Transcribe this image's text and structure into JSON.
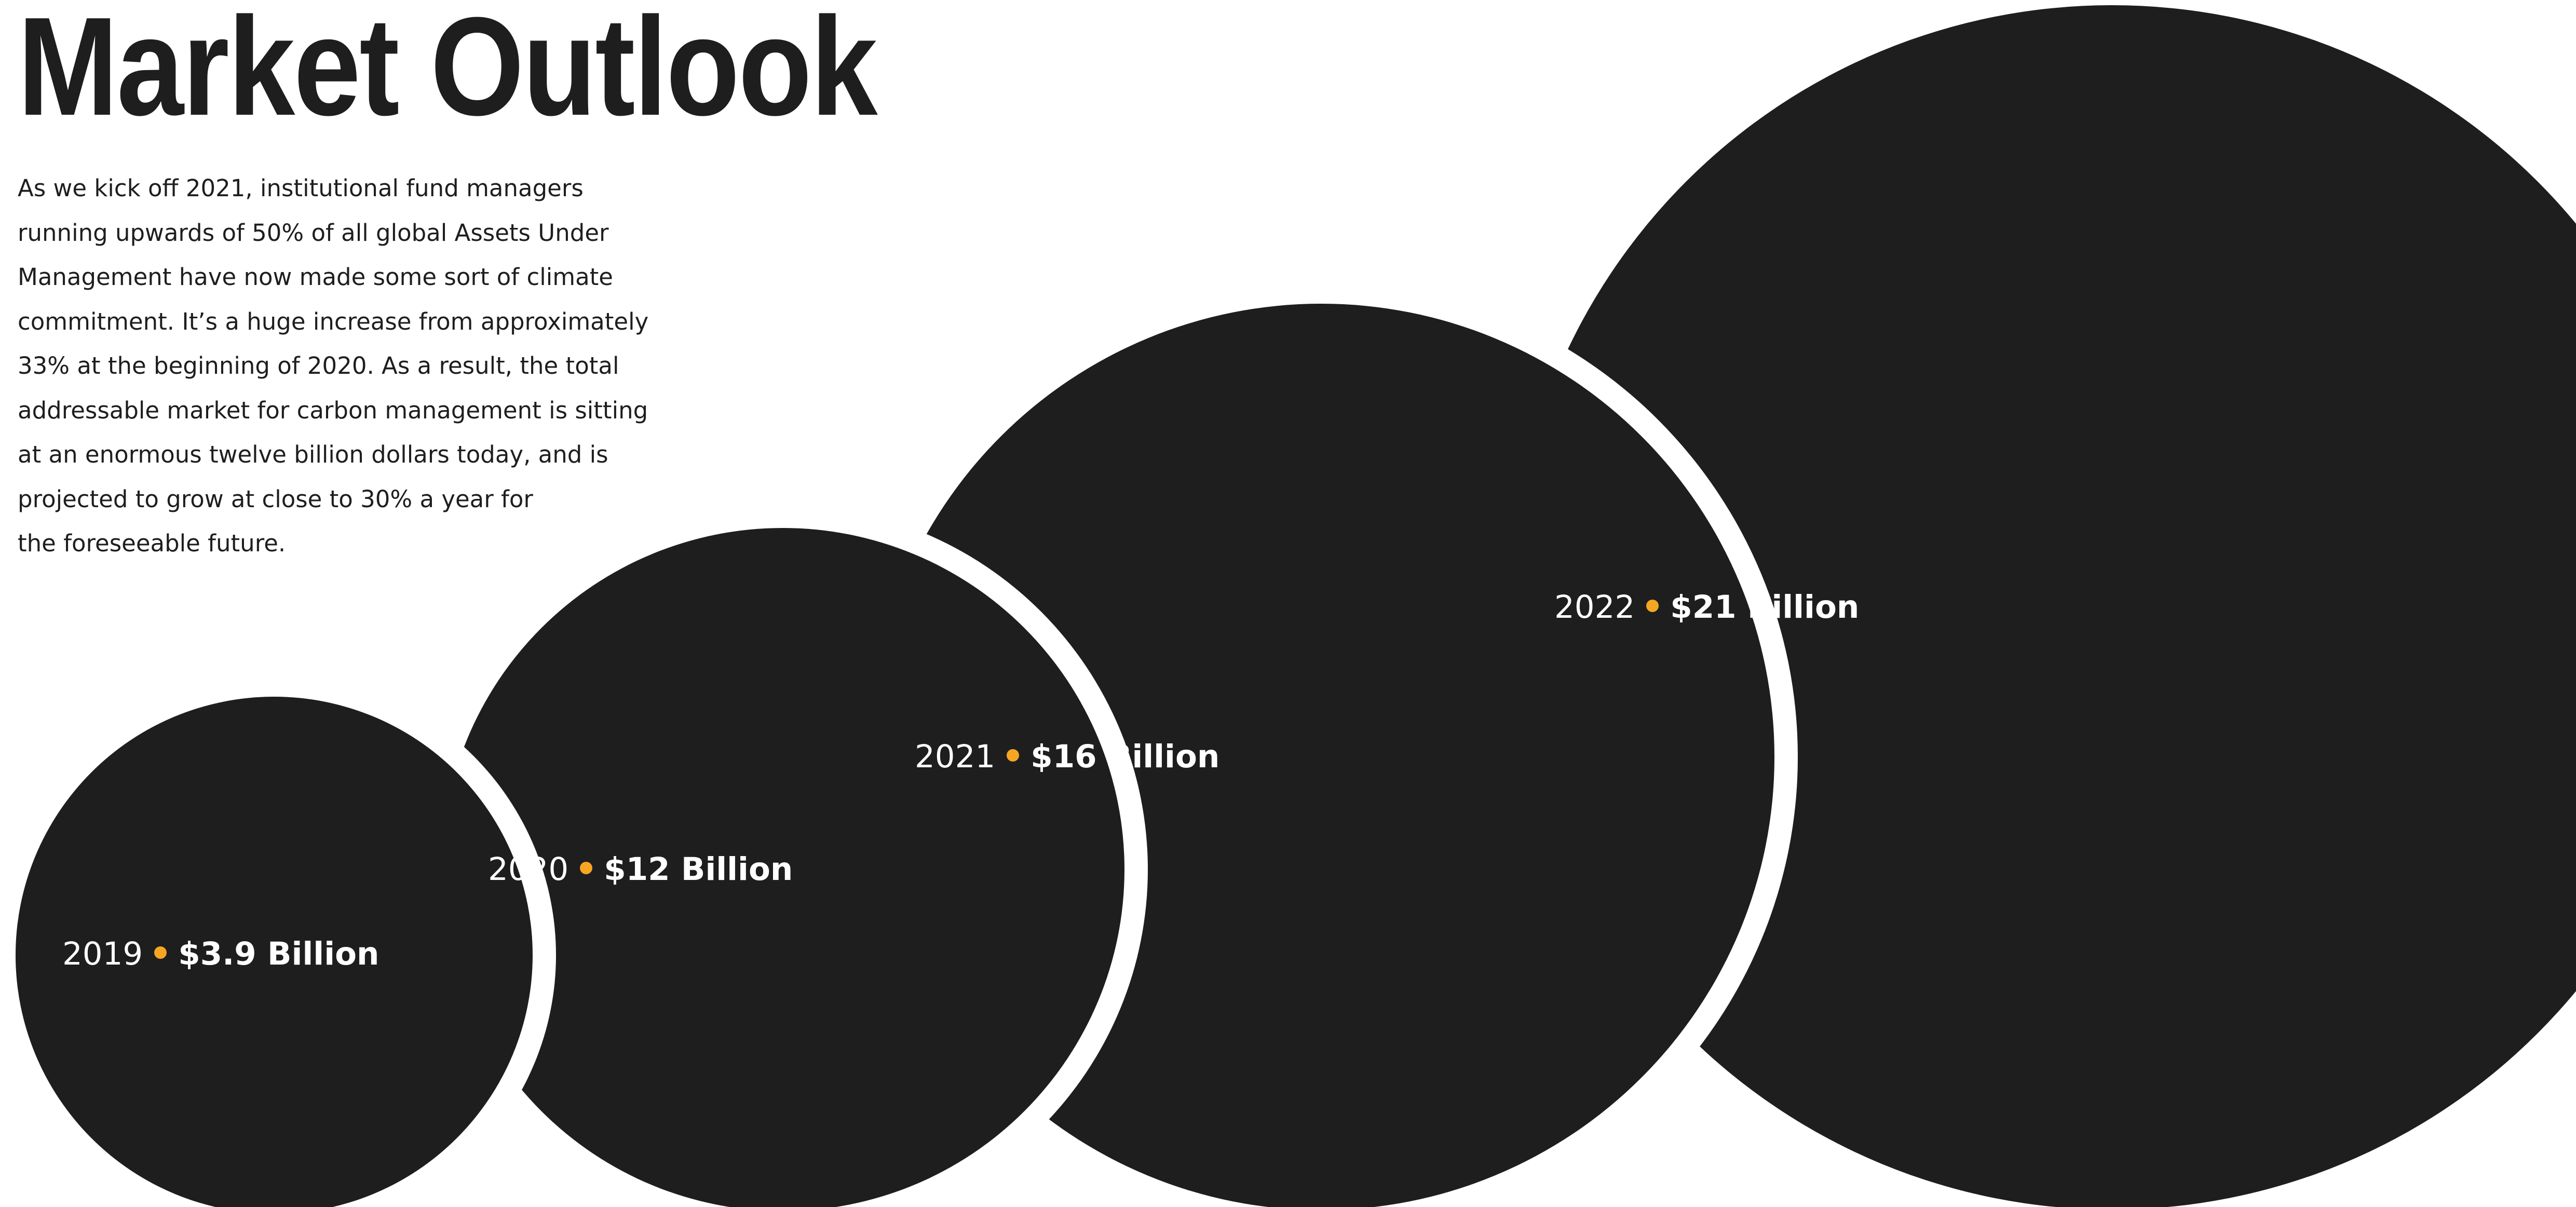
{
  "page": {
    "title": "Market Outlook",
    "intro_lines": [
      "As we kick off 2021, institutional fund managers",
      "running upwards of 50% of all global Assets Under",
      "Management have now made some sort of climate",
      "commitment. It’s a huge increase from approximately",
      "33% at the beginning of 2020. As a result, the total",
      "addressable market for carbon management is sitting",
      "at an enormous twelve billion dollars today, and is",
      "projected to grow at close to 30% a year for",
      "the foreseeable future."
    ]
  },
  "colors": {
    "bubble": "#1e1e1e",
    "accent_dot": "#f5a623",
    "background": "#ffffff",
    "text": "#1e1e1e"
  },
  "chart_data": {
    "type": "bubble",
    "title": "Market Outlook",
    "xlabel": "",
    "ylabel": "",
    "grid": false,
    "legend": "none",
    "categories": [
      "2019",
      "2020",
      "2021",
      "2022"
    ],
    "values": [
      3.9,
      12,
      16,
      21
    ],
    "value_labels": [
      "$3.9 Billion",
      "$12 Billion",
      "$16 Billion",
      "$21 Billion"
    ],
    "unit": "Billion USD"
  }
}
